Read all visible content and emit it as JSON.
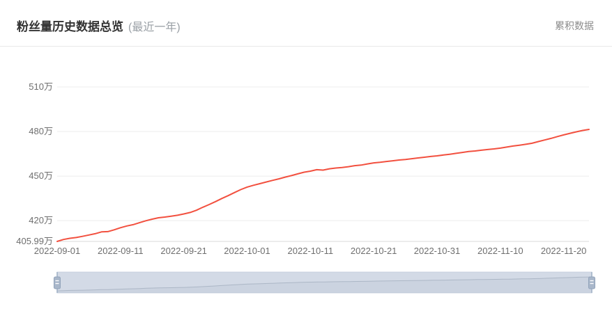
{
  "header": {
    "title": "粉丝量历史数据总览",
    "subtitle": "(最近一年)",
    "right_label": "累积数据"
  },
  "chart_data": {
    "type": "line",
    "title": "粉丝量历史数据总览 (最近一年)",
    "series_name": "累积数据",
    "unit": "万",
    "line_color": "#f2503f",
    "grid": true,
    "legend": "none",
    "y_min": 405.99,
    "y_top": 510,
    "y_ticks": [
      405.99,
      420,
      450,
      480,
      510
    ],
    "y_tick_labels": [
      "405.99万",
      "420万",
      "450万",
      "480万",
      "510万"
    ],
    "x_tick_labels": [
      "2022-09-01",
      "2022-09-11",
      "2022-09-21",
      "2022-10-01",
      "2022-10-11",
      "2022-10-21",
      "2022-10-31",
      "2022-11-10",
      "2022-11-20"
    ],
    "x_tick_interval_days": 10,
    "dates": [
      "2022-09-01",
      "2022-09-02",
      "2022-09-03",
      "2022-09-04",
      "2022-09-05",
      "2022-09-06",
      "2022-09-07",
      "2022-09-08",
      "2022-09-09",
      "2022-09-10",
      "2022-09-11",
      "2022-09-12",
      "2022-09-13",
      "2022-09-14",
      "2022-09-15",
      "2022-09-16",
      "2022-09-17",
      "2022-09-18",
      "2022-09-19",
      "2022-09-20",
      "2022-09-21",
      "2022-09-22",
      "2022-09-23",
      "2022-09-24",
      "2022-09-25",
      "2022-09-26",
      "2022-09-27",
      "2022-09-28",
      "2022-09-29",
      "2022-09-30",
      "2022-10-01",
      "2022-10-02",
      "2022-10-03",
      "2022-10-04",
      "2022-10-05",
      "2022-10-06",
      "2022-10-07",
      "2022-10-08",
      "2022-10-09",
      "2022-10-10",
      "2022-10-11",
      "2022-10-12",
      "2022-10-13",
      "2022-10-14",
      "2022-10-15",
      "2022-10-16",
      "2022-10-17",
      "2022-10-18",
      "2022-10-19",
      "2022-10-20",
      "2022-10-21",
      "2022-10-22",
      "2022-10-23",
      "2022-10-24",
      "2022-10-25",
      "2022-10-26",
      "2022-10-27",
      "2022-10-28",
      "2022-10-29",
      "2022-10-30",
      "2022-10-31",
      "2022-11-01",
      "2022-11-02",
      "2022-11-03",
      "2022-11-04",
      "2022-11-05",
      "2022-11-06",
      "2022-11-07",
      "2022-11-08",
      "2022-11-09",
      "2022-11-10",
      "2022-11-11",
      "2022-11-12",
      "2022-11-13",
      "2022-11-14",
      "2022-11-15",
      "2022-11-16",
      "2022-11-17",
      "2022-11-18",
      "2022-11-19",
      "2022-11-20",
      "2022-11-21",
      "2022-11-22",
      "2022-11-23",
      "2022-11-24"
    ],
    "values": [
      405.99,
      407.3,
      408.1,
      408.6,
      409.4,
      410.3,
      411.2,
      412.4,
      412.6,
      413.8,
      415.2,
      416.4,
      417.3,
      418.6,
      419.9,
      421.0,
      421.9,
      422.4,
      423.0,
      423.6,
      424.5,
      425.5,
      427.0,
      429.0,
      430.8,
      432.8,
      434.9,
      436.8,
      438.9,
      440.9,
      442.6,
      443.8,
      444.9,
      446.0,
      447.1,
      448.1,
      449.3,
      450.3,
      451.5,
      452.6,
      453.3,
      454.3,
      454.0,
      454.9,
      455.4,
      455.8,
      456.3,
      457.0,
      457.4,
      458.2,
      458.9,
      459.3,
      459.8,
      460.3,
      460.8,
      461.2,
      461.7,
      462.2,
      462.7,
      463.2,
      463.6,
      464.2,
      464.7,
      465.3,
      465.9,
      466.5,
      466.9,
      467.4,
      467.9,
      468.3,
      468.8,
      469.5,
      470.2,
      470.8,
      471.4,
      472.1,
      473.2,
      474.3,
      475.4,
      476.6,
      477.7,
      478.8,
      479.8,
      480.7,
      481.42
    ]
  },
  "slider": {
    "range_start_pct": 0,
    "range_end_pct": 100,
    "handle_color": "#a9b7ca",
    "track_color": "#dfe4ee"
  }
}
